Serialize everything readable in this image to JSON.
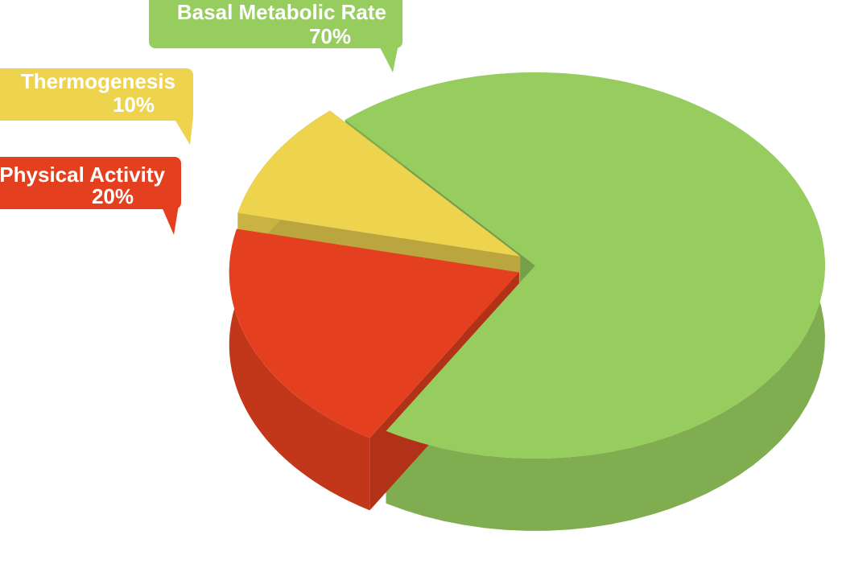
{
  "chart_data": {
    "type": "pie3d",
    "categories": [
      "Basal Metabolic Rate",
      "Thermogenesis",
      "Physical Activity"
    ],
    "values": [
      70,
      10,
      20
    ],
    "value_labels": [
      "70%",
      "10%",
      "20%"
    ],
    "colors": [
      "#97cc5e",
      "#eed34f",
      "#e4401f"
    ]
  }
}
